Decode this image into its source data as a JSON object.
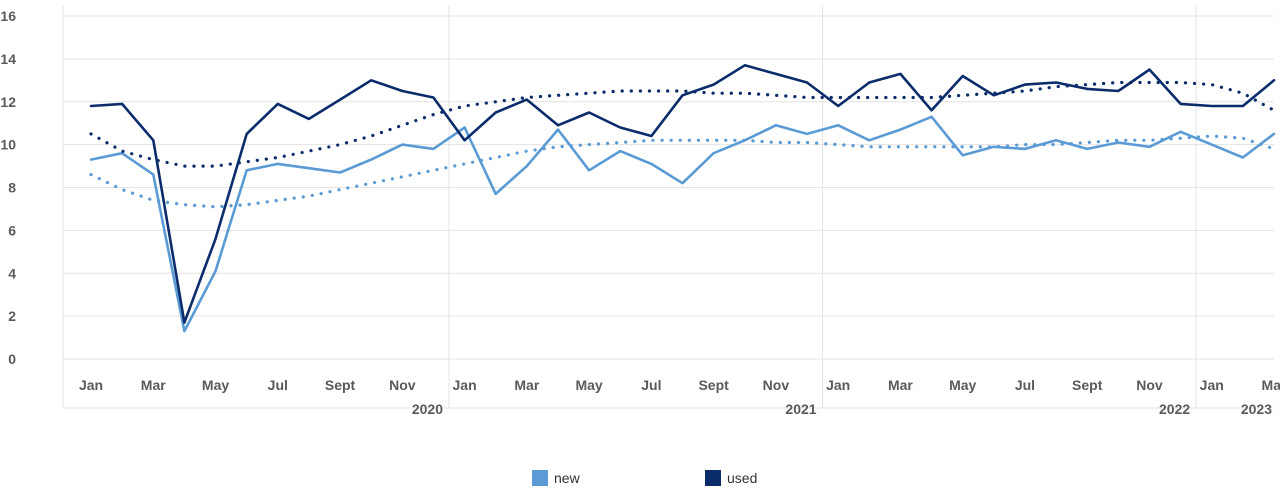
{
  "chart_data": {
    "type": "line",
    "x": [
      "Jan 2020",
      "Feb 2020",
      "Mar 2020",
      "Apr 2020",
      "May 2020",
      "Jun 2020",
      "Jul 2020",
      "Aug 2020",
      "Sep 2020",
      "Oct 2020",
      "Nov 2020",
      "Dec 2020",
      "Jan 2021",
      "Feb 2021",
      "Mar 2021",
      "Apr 2021",
      "May 2021",
      "Jun 2021",
      "Jul 2021",
      "Aug 2021",
      "Sep 2021",
      "Oct 2021",
      "Nov 2021",
      "Dec 2021",
      "Jan 2022",
      "Feb 2022",
      "Mar 2022",
      "Apr 2022",
      "May 2022",
      "Jun 2022",
      "Jul 2022",
      "Aug 2022",
      "Sep 2022",
      "Oct 2022",
      "Nov 2022",
      "Dec 2022",
      "Jan 2023",
      "Feb 2023",
      "Mar 2023"
    ],
    "month_tick_labels": [
      "Jan",
      "Mar",
      "May",
      "Jul",
      "Sept",
      "Nov",
      "Jan",
      "Mar",
      "May",
      "Jul",
      "Sept",
      "Nov",
      "Jan",
      "Mar",
      "May",
      "Jul",
      "Sept",
      "Nov",
      "Jan",
      "Mar"
    ],
    "year_labels": [
      "2020",
      "2021",
      "2022",
      "2023"
    ],
    "y_ticks": [
      0,
      2,
      4,
      6,
      8,
      10,
      12,
      14,
      16
    ],
    "ylim": [
      0,
      16
    ],
    "grid": true,
    "legend_position": "bottom",
    "series": [
      {
        "name": "new",
        "color": "#5b9bd5",
        "style": "solid",
        "values": [
          9.3,
          9.6,
          8.6,
          1.3,
          4.1,
          8.8,
          9.1,
          8.9,
          8.7,
          9.3,
          10.0,
          9.8,
          10.8,
          7.7,
          9.0,
          10.7,
          8.8,
          9.7,
          9.1,
          8.2,
          9.6,
          10.2,
          10.9,
          10.5,
          10.9,
          10.2,
          10.7,
          11.3,
          9.5,
          9.9,
          9.8,
          10.2,
          9.8,
          10.1,
          9.9,
          10.6,
          10.0,
          9.4,
          10.5
        ]
      },
      {
        "name": "used",
        "color": "#0b2c6b",
        "style": "solid",
        "values": [
          11.8,
          11.9,
          10.2,
          1.7,
          5.6,
          10.5,
          11.9,
          11.2,
          12.1,
          13.0,
          12.5,
          12.2,
          10.2,
          11.5,
          12.1,
          10.9,
          11.5,
          10.8,
          10.4,
          12.3,
          12.8,
          13.7,
          13.3,
          12.9,
          11.8,
          12.9,
          13.3,
          11.6,
          13.2,
          12.3,
          12.8,
          12.9,
          12.6,
          12.5,
          13.5,
          11.9,
          11.8,
          11.8,
          13.0
        ]
      },
      {
        "name": "",
        "color": "#5b9bd5",
        "style": "dotted",
        "values": [
          8.6,
          7.9,
          7.4,
          7.2,
          7.1,
          7.2,
          7.4,
          7.6,
          7.9,
          8.2,
          8.5,
          8.8,
          9.1,
          9.4,
          9.7,
          9.9,
          10.0,
          10.1,
          10.2,
          10.2,
          10.2,
          10.2,
          10.1,
          10.1,
          10.0,
          9.9,
          9.9,
          9.9,
          9.9,
          9.9,
          10.0,
          10.0,
          10.1,
          10.2,
          10.2,
          10.3,
          10.4,
          10.3,
          9.8
        ]
      },
      {
        "name": "",
        "color": "#0b2c6b",
        "style": "dotted",
        "values": [
          10.5,
          9.7,
          9.3,
          9.0,
          9.0,
          9.2,
          9.4,
          9.7,
          10.0,
          10.4,
          10.9,
          11.4,
          11.8,
          12.0,
          12.2,
          12.3,
          12.4,
          12.5,
          12.5,
          12.5,
          12.4,
          12.4,
          12.3,
          12.2,
          12.2,
          12.2,
          12.2,
          12.2,
          12.3,
          12.4,
          12.5,
          12.7,
          12.8,
          12.9,
          12.9,
          12.9,
          12.8,
          12.4,
          11.6
        ]
      }
    ]
  },
  "legend": {
    "items": [
      {
        "label": "new",
        "color": "#5b9bd5"
      },
      {
        "label": "used",
        "color": "#0b2c6b"
      }
    ]
  }
}
